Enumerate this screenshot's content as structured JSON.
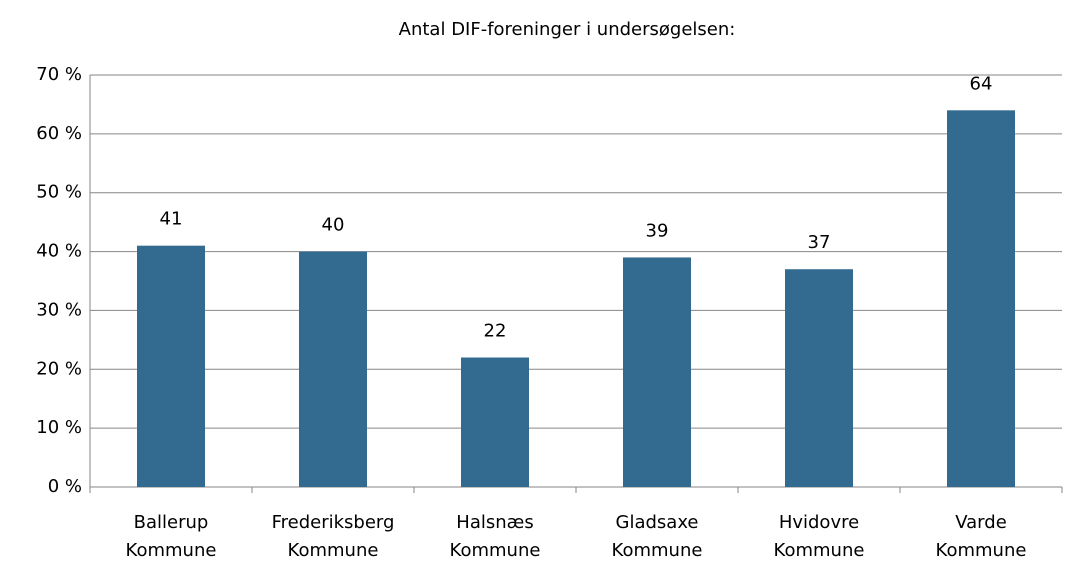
{
  "chart_data": {
    "type": "bar",
    "title": "Antal DIF-foreninger i undersøgelsen:",
    "categories": [
      "Ballerup Kommune",
      "Frederiksberg Kommune",
      "Halsnæs Kommune",
      "Gladsaxe Kommune",
      "Hvidovre Kommune",
      "Varde Kommune"
    ],
    "values": [
      41,
      40,
      22,
      39,
      37,
      64
    ],
    "color": "#336a8f",
    "ylim": [
      0,
      70
    ],
    "yticks": [
      {
        "value": 0,
        "label": "0 %"
      },
      {
        "value": 10,
        "label": "10 %"
      },
      {
        "value": 20,
        "label": "20 %"
      },
      {
        "value": 30,
        "label": "30 %"
      },
      {
        "value": 40,
        "label": "40 %"
      },
      {
        "value": 50,
        "label": "50 %"
      },
      {
        "value": 60,
        "label": "60 %"
      },
      {
        "value": 70,
        "label": "70 %"
      }
    ],
    "grid": true
  }
}
